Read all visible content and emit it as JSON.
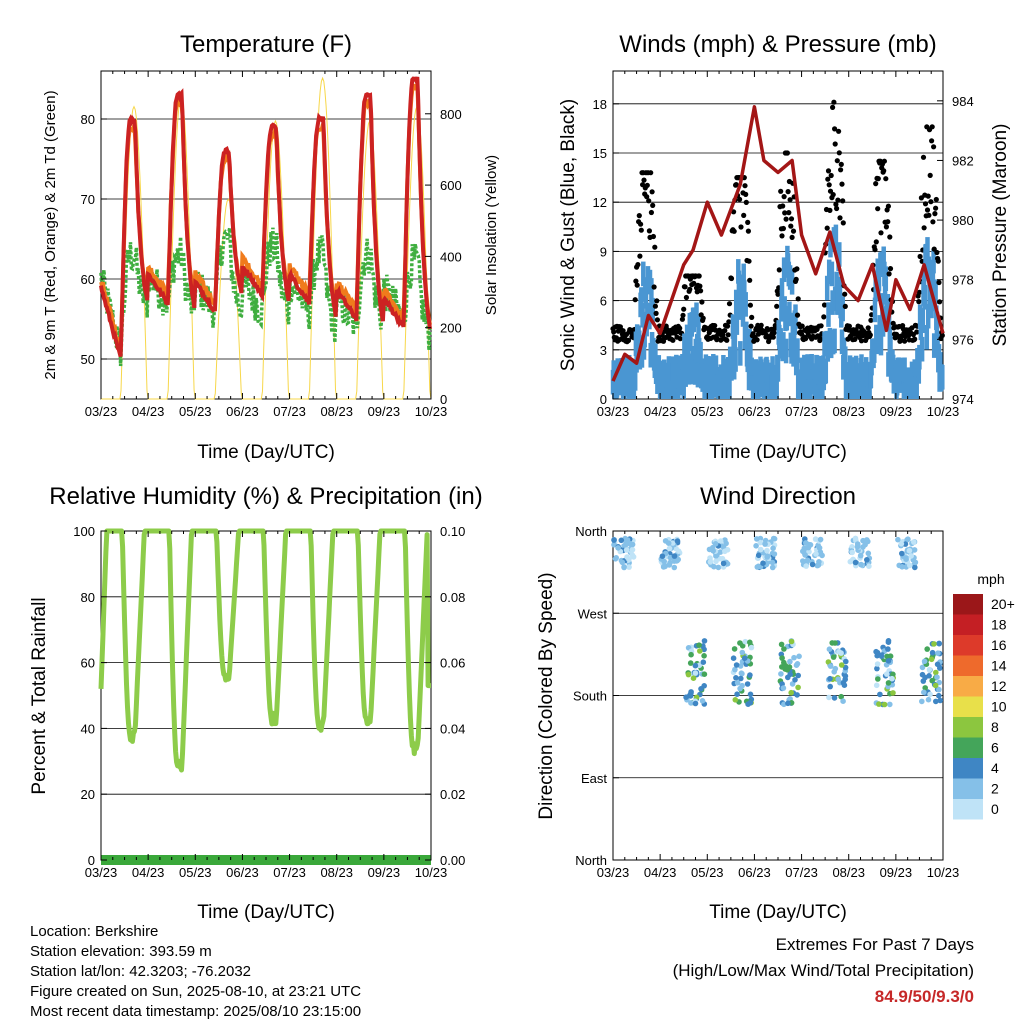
{
  "colors": {
    "temp_red": "#cc2222",
    "temp_orange": "#f07b1c",
    "dewpoint_green": "#3fae3f",
    "insolation_yellow": "#f7d74a",
    "wind_blue": "#4a96d2",
    "gust_black": "#000000",
    "pressure_maroon": "#a31616",
    "rh_green": "#8dcc4a",
    "precip_green": "#3aa83a",
    "extremes_red": "#c62828"
  },
  "x_ticks": [
    "03/23",
    "04/23",
    "05/23",
    "06/23",
    "07/23",
    "08/23",
    "09/23",
    "10/23"
  ],
  "footer": {
    "location": "Location: Berkshire",
    "elevation": "Station elevation: 393.59 m",
    "latlon": "Station lat/lon: 42.3203; -76.2032",
    "created": "Figure created on Sun, 2025-08-10, at 23:21 UTC",
    "recent": "Most recent data timestamp: 2025/08/10 23:15:00"
  },
  "extremes": {
    "title": "Extremes For Past 7 Days",
    "subtitle": "(High/Low/Max Wind/Total Precipitation)",
    "value": "84.9/50/9.3/0"
  },
  "chart_data": [
    {
      "id": "temperature",
      "type": "line",
      "title": "Temperature (F)",
      "xlabel": "Time (Day/UTC)",
      "ylabel": "2m & 9m T (Red, Orange) & 2m Td (Green)",
      "ylabel_right": "Solar Insolation (Yellow)",
      "ylim": [
        45,
        86
      ],
      "yticks": [
        50,
        60,
        70,
        80
      ],
      "ylim_right": [
        0,
        920
      ],
      "yticks_right": [
        0,
        200,
        400,
        600,
        800
      ],
      "days": 7,
      "series": [
        {
          "key": "t2m",
          "color": "#cc2222",
          "highs": [
            80,
            83,
            76,
            79,
            80,
            83,
            85
          ],
          "lows": [
            50,
            57,
            56,
            58,
            57,
            55,
            54,
            53
          ]
        },
        {
          "key": "t9m",
          "color": "#f07b1c",
          "highs": [
            79,
            82,
            75,
            78,
            79,
            82,
            84
          ],
          "lows": [
            51,
            58,
            57,
            59,
            58,
            56,
            55,
            54
          ]
        },
        {
          "key": "td2m",
          "color": "#3fae3f",
          "highs": [
            63,
            63,
            65,
            64,
            63,
            63,
            62
          ],
          "lows": [
            51,
            57,
            56,
            56,
            56,
            54,
            55,
            53
          ]
        },
        {
          "key": "insolation",
          "color": "#f7d74a",
          "peaks": [
            820,
            850,
            560,
            780,
            900,
            780,
            820
          ]
        }
      ]
    },
    {
      "id": "winds",
      "type": "scatter",
      "title": "Winds (mph) & Pressure (mb)",
      "xlabel": "Time (Day/UTC)",
      "ylabel": "Sonic Wind & Gust (Blue, Black)",
      "ylabel_right": "Station Pressure (Maroon)",
      "ylim": [
        0,
        20
      ],
      "yticks": [
        0,
        3,
        6,
        9,
        12,
        15,
        18
      ],
      "ylim_right": [
        974,
        985
      ],
      "yticks_right": [
        974,
        976,
        978,
        980,
        982,
        984
      ],
      "days": 7,
      "daily_max_gust": [
        13.8,
        7.5,
        13.5,
        15,
        18.1,
        14.5,
        16.6
      ],
      "pressure": {
        "x": [
          0,
          0.25,
          0.5,
          0.75,
          1.0,
          1.5,
          1.7,
          2.0,
          2.3,
          2.7,
          3.0,
          3.2,
          3.5,
          3.8,
          4.0,
          4.3,
          4.6,
          4.9,
          5.2,
          5.5,
          5.8,
          6.0,
          6.3,
          6.6,
          7.0
        ],
        "mb": [
          974.6,
          975.5,
          975.2,
          976.8,
          976.2,
          978.5,
          979.0,
          980.6,
          979.5,
          981.2,
          983.8,
          982.0,
          981.6,
          982.0,
          979.5,
          978.2,
          979.6,
          977.8,
          977.3,
          978.5,
          976.3,
          978.0,
          977.0,
          978.5,
          976.2
        ]
      }
    },
    {
      "id": "humidity",
      "type": "line",
      "title": "Relative Humidity (%) & Precipitation (in)",
      "xlabel": "Time (Day/UTC)",
      "ylabel": "Percent & Total Rainfall",
      "ylim": [
        0,
        100
      ],
      "yticks": [
        0,
        20,
        40,
        60,
        80,
        100
      ],
      "ylim_right": [
        0,
        0.1
      ],
      "yticks_right": [
        "0.00",
        "0.02",
        "0.04",
        "0.06",
        "0.08",
        "0.10"
      ],
      "days": 7,
      "rh_daily_min": [
        38,
        29,
        56,
        43,
        41,
        43,
        34
      ],
      "rh_max": 100,
      "precip_total": 0
    },
    {
      "id": "wind_direction",
      "type": "scatter",
      "title": "Wind Direction",
      "xlabel": "Time (Day/UTC)",
      "ylabel": "Direction (Colored By Speed)",
      "ylabels": [
        "North",
        "East",
        "South",
        "West",
        "North"
      ],
      "ylim_deg": [
        0,
        360
      ],
      "days": 7,
      "colorbar": {
        "title": "mph",
        "labels": [
          "0",
          "2",
          "4",
          "6",
          "8",
          "10",
          "12",
          "14",
          "16",
          "18",
          "20+"
        ],
        "colors": [
          "#bfe3f7",
          "#85c0e8",
          "#3f86c4",
          "#44a55a",
          "#8cc63f",
          "#e8e04a",
          "#f8ab46",
          "#ee6a2c",
          "#dd3a2a",
          "#c41f24",
          "#9b1719"
        ]
      }
    }
  ]
}
